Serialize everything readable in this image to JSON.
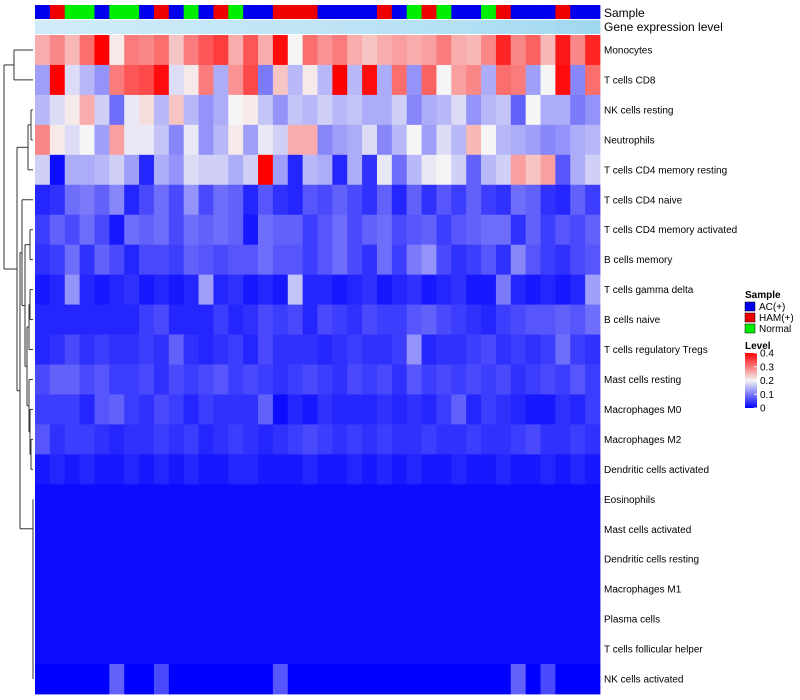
{
  "chart_data": {
    "type": "heatmap",
    "title": "",
    "colors": {
      "low": "#0000ff",
      "mid": "#f5f5f5",
      "high": "#ff0000",
      "sample_groups": {
        "AC(+)": "#0000ee",
        "HAM(+)": "#ee0000",
        "Normal": "#00ee00"
      },
      "gene_expression_track": "#87ceeb",
      "dendrogram": "#333333"
    },
    "annotation_tracks": [
      {
        "name": "Sample"
      },
      {
        "name": "Gene expression level"
      }
    ],
    "legend": {
      "position": "right",
      "sample_title": "Sample",
      "sample_entries": [
        "AC(+)",
        "HAM(+)",
        "Normal"
      ],
      "level_title": "Level",
      "level_ticks": [
        0.4,
        0.3,
        0.2,
        0.1,
        0
      ],
      "level_tick_labels": [
        "0.4",
        "0.3",
        "0.2",
        "0.1",
        "0"
      ],
      "range": [
        0,
        0.4
      ]
    },
    "sample_annotation": [
      "AC(+)",
      "HAM(+)",
      "Normal",
      "Normal",
      "AC(+)",
      "Normal",
      "Normal",
      "AC(+)",
      "HAM(+)",
      "AC(+)",
      "Normal",
      "AC(+)",
      "HAM(+)",
      "Normal",
      "AC(+)",
      "AC(+)",
      "HAM(+)",
      "HAM(+)",
      "HAM(+)",
      "AC(+)",
      "AC(+)",
      "AC(+)",
      "AC(+)",
      "HAM(+)",
      "AC(+)",
      "Normal",
      "HAM(+)",
      "Normal",
      "AC(+)",
      "AC(+)",
      "Normal",
      "HAM(+)",
      "AC(+)",
      "AC(+)",
      "AC(+)",
      "HAM(+)",
      "AC(+)",
      "AC(+)"
    ],
    "gene_expression_annotation": [
      0.3,
      0.3,
      0.31,
      0.32,
      0.33,
      0.34,
      0.35,
      0.36,
      0.37,
      0.38,
      0.39,
      0.4,
      0.41,
      0.42,
      0.43,
      0.44,
      0.45,
      0.46,
      0.47,
      0.48,
      0.49,
      0.5,
      0.51,
      0.52,
      0.53,
      0.54,
      0.55,
      0.56,
      0.58,
      0.6,
      0.62,
      0.64,
      0.66,
      0.68,
      0.7,
      0.72,
      0.74,
      0.78
    ],
    "rows": [
      "Monocytes",
      "T cells CD8",
      "NK cells resting",
      "Neutrophils",
      "T cells CD4 memory resting",
      "T cells CD4 naive",
      "T cells CD4 memory activated",
      "B cells memory",
      "T cells gamma delta",
      "B cells naive",
      "T cells regulatory  Tregs",
      "Mast cells resting",
      "Macrophages M0",
      "Macrophages M2",
      "Dendritic cells activated",
      "Eosinophils",
      "Mast cells activated",
      "Dendritic cells resting",
      "Macrophages M1",
      "Plasma cells",
      "T cells follicular helper",
      "NK cells activated"
    ],
    "values": [
      [
        0.26,
        0.29,
        0.25,
        0.31,
        0.4,
        0.21,
        0.3,
        0.29,
        0.31,
        0.24,
        0.3,
        0.33,
        0.35,
        0.26,
        0.33,
        0.26,
        0.39,
        0.2,
        0.31,
        0.28,
        0.3,
        0.26,
        0.24,
        0.26,
        0.27,
        0.26,
        0.27,
        0.3,
        0.26,
        0.25,
        0.29,
        0.37,
        0.29,
        0.32,
        0.25,
        0.38,
        0.29,
        0.37
      ],
      [
        0.13,
        0.4,
        0.18,
        0.15,
        0.12,
        0.3,
        0.33,
        0.34,
        0.39,
        0.18,
        0.21,
        0.3,
        0.14,
        0.28,
        0.34,
        0.1,
        0.24,
        0.15,
        0.21,
        0.15,
        0.4,
        0.15,
        0.39,
        0.14,
        0.31,
        0.12,
        0.32,
        0.2,
        0.27,
        0.29,
        0.14,
        0.31,
        0.3,
        0.13,
        0.2,
        0.39,
        0.11,
        0.31
      ],
      [
        0.15,
        0.18,
        0.21,
        0.26,
        0.17,
        0.09,
        0.19,
        0.22,
        0.15,
        0.24,
        0.15,
        0.12,
        0.14,
        0.2,
        0.21,
        0.16,
        0.12,
        0.16,
        0.15,
        0.17,
        0.15,
        0.16,
        0.14,
        0.14,
        0.17,
        0.11,
        0.14,
        0.15,
        0.18,
        0.12,
        0.15,
        0.16,
        0.08,
        0.2,
        0.14,
        0.14,
        0.1,
        0.12
      ],
      [
        0.29,
        0.21,
        0.18,
        0.2,
        0.13,
        0.27,
        0.19,
        0.19,
        0.16,
        0.11,
        0.19,
        0.12,
        0.15,
        0.21,
        0.13,
        0.19,
        0.17,
        0.26,
        0.26,
        0.11,
        0.13,
        0.14,
        0.18,
        0.11,
        0.15,
        0.2,
        0.13,
        0.18,
        0.15,
        0.25,
        0.2,
        0.15,
        0.14,
        0.13,
        0.11,
        0.12,
        0.14,
        0.15
      ],
      [
        0.17,
        0.01,
        0.14,
        0.14,
        0.15,
        0.17,
        0.13,
        0.03,
        0.14,
        0.12,
        0.18,
        0.17,
        0.17,
        0.14,
        0.17,
        0.4,
        0.13,
        0.03,
        0.15,
        0.14,
        0.03,
        0.14,
        0.04,
        0.19,
        0.09,
        0.15,
        0.19,
        0.2,
        0.17,
        0.08,
        0.15,
        0.17,
        0.27,
        0.24,
        0.27,
        0.07,
        0.14,
        0.17
      ],
      [
        0.03,
        0.04,
        0.09,
        0.1,
        0.08,
        0.11,
        0.03,
        0.06,
        0.09,
        0.06,
        0.12,
        0.06,
        0.09,
        0.08,
        0.03,
        0.07,
        0.04,
        0.03,
        0.07,
        0.06,
        0.08,
        0.06,
        0.04,
        0.08,
        0.03,
        0.08,
        0.04,
        0.07,
        0.05,
        0.08,
        0.05,
        0.04,
        0.09,
        0.08,
        0.04,
        0.03,
        0.08,
        0.05
      ],
      [
        0.05,
        0.08,
        0.06,
        0.09,
        0.06,
        0.02,
        0.09,
        0.08,
        0.09,
        0.06,
        0.09,
        0.08,
        0.09,
        0.08,
        0.02,
        0.09,
        0.08,
        0.08,
        0.05,
        0.07,
        0.09,
        0.06,
        0.08,
        0.09,
        0.06,
        0.07,
        0.08,
        0.05,
        0.07,
        0.08,
        0.09,
        0.09,
        0.04,
        0.08,
        0.05,
        0.07,
        0.06,
        0.08
      ],
      [
        0.04,
        0.05,
        0.09,
        0.04,
        0.08,
        0.06,
        0.03,
        0.06,
        0.06,
        0.05,
        0.08,
        0.07,
        0.06,
        0.07,
        0.07,
        0.09,
        0.07,
        0.07,
        0.05,
        0.07,
        0.09,
        0.06,
        0.04,
        0.09,
        0.05,
        0.1,
        0.12,
        0.06,
        0.04,
        0.05,
        0.07,
        0.04,
        0.11,
        0.07,
        0.05,
        0.04,
        0.06,
        0.07
      ],
      [
        0.02,
        0.03,
        0.12,
        0.03,
        0.02,
        0.03,
        0.04,
        0.02,
        0.03,
        0.02,
        0.03,
        0.13,
        0.03,
        0.04,
        0.02,
        0.03,
        0.02,
        0.16,
        0.03,
        0.03,
        0.02,
        0.03,
        0.04,
        0.02,
        0.03,
        0.04,
        0.02,
        0.03,
        0.04,
        0.02,
        0.02,
        0.1,
        0.03,
        0.02,
        0.03,
        0.02,
        0.03,
        0.13
      ],
      [
        0.03,
        0.03,
        0.03,
        0.03,
        0.03,
        0.03,
        0.03,
        0.05,
        0.06,
        0.03,
        0.03,
        0.03,
        0.05,
        0.03,
        0.04,
        0.06,
        0.05,
        0.06,
        0.03,
        0.06,
        0.05,
        0.04,
        0.06,
        0.05,
        0.05,
        0.07,
        0.08,
        0.06,
        0.05,
        0.04,
        0.03,
        0.05,
        0.06,
        0.07,
        0.07,
        0.08,
        0.07,
        0.09
      ],
      [
        0.03,
        0.04,
        0.06,
        0.04,
        0.05,
        0.04,
        0.04,
        0.05,
        0.04,
        0.08,
        0.04,
        0.03,
        0.04,
        0.05,
        0.03,
        0.06,
        0.04,
        0.04,
        0.04,
        0.03,
        0.04,
        0.05,
        0.04,
        0.04,
        0.05,
        0.12,
        0.03,
        0.04,
        0.04,
        0.05,
        0.06,
        0.04,
        0.05,
        0.04,
        0.05,
        0.09,
        0.05,
        0.04
      ],
      [
        0.06,
        0.08,
        0.08,
        0.06,
        0.07,
        0.05,
        0.05,
        0.06,
        0.04,
        0.06,
        0.05,
        0.06,
        0.07,
        0.05,
        0.06,
        0.05,
        0.04,
        0.05,
        0.06,
        0.05,
        0.04,
        0.06,
        0.05,
        0.06,
        0.04,
        0.07,
        0.05,
        0.06,
        0.05,
        0.06,
        0.05,
        0.06,
        0.04,
        0.05,
        0.06,
        0.05,
        0.07,
        0.05
      ],
      [
        0.05,
        0.05,
        0.05,
        0.03,
        0.07,
        0.08,
        0.05,
        0.04,
        0.06,
        0.05,
        0.03,
        0.05,
        0.04,
        0.04,
        0.04,
        0.08,
        0.01,
        0.03,
        0.02,
        0.04,
        0.03,
        0.03,
        0.03,
        0.04,
        0.03,
        0.04,
        0.03,
        0.05,
        0.08,
        0.03,
        0.05,
        0.04,
        0.03,
        0.02,
        0.02,
        0.04,
        0.03,
        0.05
      ],
      [
        0.07,
        0.04,
        0.05,
        0.05,
        0.04,
        0.03,
        0.04,
        0.04,
        0.05,
        0.04,
        0.05,
        0.03,
        0.04,
        0.05,
        0.04,
        0.03,
        0.04,
        0.05,
        0.06,
        0.05,
        0.04,
        0.05,
        0.04,
        0.05,
        0.04,
        0.04,
        0.05,
        0.04,
        0.04,
        0.05,
        0.04,
        0.04,
        0.05,
        0.06,
        0.04,
        0.04,
        0.05,
        0.04
      ],
      [
        0.02,
        0.03,
        0.02,
        0.03,
        0.02,
        0.02,
        0.03,
        0.02,
        0.03,
        0.02,
        0.03,
        0.02,
        0.02,
        0.03,
        0.03,
        0.02,
        0.02,
        0.02,
        0.03,
        0.02,
        0.02,
        0.03,
        0.02,
        0.03,
        0.02,
        0.03,
        0.02,
        0.02,
        0.03,
        0.02,
        0.02,
        0.03,
        0.02,
        0.02,
        0.03,
        0.02,
        0.03,
        0.02
      ],
      [
        0.01,
        0.01,
        0.01,
        0.01,
        0.01,
        0.01,
        0.01,
        0.01,
        0.01,
        0.01,
        0.01,
        0.01,
        0.01,
        0.01,
        0.01,
        0.01,
        0.01,
        0.01,
        0.01,
        0.01,
        0.01,
        0.01,
        0.01,
        0.01,
        0.01,
        0.01,
        0.01,
        0.01,
        0.01,
        0.01,
        0.01,
        0.01,
        0.01,
        0.01,
        0.01,
        0.01,
        0.01,
        0.01
      ],
      [
        0.01,
        0.01,
        0.01,
        0.01,
        0.01,
        0.01,
        0.01,
        0.01,
        0.01,
        0.01,
        0.01,
        0.01,
        0.01,
        0.01,
        0.01,
        0.01,
        0.01,
        0.01,
        0.01,
        0.01,
        0.01,
        0.01,
        0.01,
        0.01,
        0.01,
        0.01,
        0.01,
        0.01,
        0.01,
        0.01,
        0.01,
        0.01,
        0.01,
        0.01,
        0.01,
        0.01,
        0.01,
        0.01
      ],
      [
        0.01,
        0.01,
        0.01,
        0.01,
        0.01,
        0.01,
        0.01,
        0.01,
        0.01,
        0.01,
        0.01,
        0.01,
        0.01,
        0.01,
        0.01,
        0.01,
        0.01,
        0.01,
        0.01,
        0.01,
        0.01,
        0.01,
        0.01,
        0.01,
        0.01,
        0.01,
        0.01,
        0.01,
        0.01,
        0.01,
        0.01,
        0.01,
        0.01,
        0.01,
        0.01,
        0.01,
        0.01,
        0.01
      ],
      [
        0.01,
        0.01,
        0.01,
        0.01,
        0.01,
        0.01,
        0.01,
        0.01,
        0.01,
        0.01,
        0.01,
        0.01,
        0.01,
        0.01,
        0.01,
        0.01,
        0.01,
        0.01,
        0.01,
        0.01,
        0.01,
        0.01,
        0.01,
        0.01,
        0.01,
        0.01,
        0.01,
        0.01,
        0.01,
        0.01,
        0.01,
        0.01,
        0.01,
        0.01,
        0.01,
        0.01,
        0.01,
        0.01
      ],
      [
        0.01,
        0.01,
        0.01,
        0.01,
        0.01,
        0.01,
        0.01,
        0.01,
        0.01,
        0.01,
        0.01,
        0.01,
        0.01,
        0.01,
        0.01,
        0.01,
        0.01,
        0.01,
        0.01,
        0.01,
        0.01,
        0.01,
        0.01,
        0.01,
        0.01,
        0.01,
        0.01,
        0.01,
        0.01,
        0.01,
        0.01,
        0.01,
        0.01,
        0.01,
        0.01,
        0.01,
        0.01,
        0.01
      ],
      [
        0.01,
        0.01,
        0.01,
        0.01,
        0.01,
        0.01,
        0.01,
        0.01,
        0.01,
        0.01,
        0.01,
        0.01,
        0.01,
        0.01,
        0.01,
        0.01,
        0.01,
        0.01,
        0.01,
        0.01,
        0.01,
        0.01,
        0.01,
        0.01,
        0.01,
        0.01,
        0.01,
        0.01,
        0.01,
        0.01,
        0.01,
        0.01,
        0.01,
        0.01,
        0.01,
        0.01,
        0.01,
        0.01
      ],
      [
        0.0,
        0.0,
        0.0,
        0.0,
        0.0,
        0.08,
        0.0,
        0.0,
        0.06,
        0.0,
        0.0,
        0.0,
        0.0,
        0.0,
        0.0,
        0.0,
        0.07,
        0.0,
        0.0,
        0.0,
        0.0,
        0.0,
        0.0,
        0.0,
        0.0,
        0.0,
        0.0,
        0.0,
        0.0,
        0.0,
        0.0,
        0.0,
        0.08,
        0.0,
        0.06,
        0.0,
        0.0,
        0.0
      ]
    ]
  }
}
